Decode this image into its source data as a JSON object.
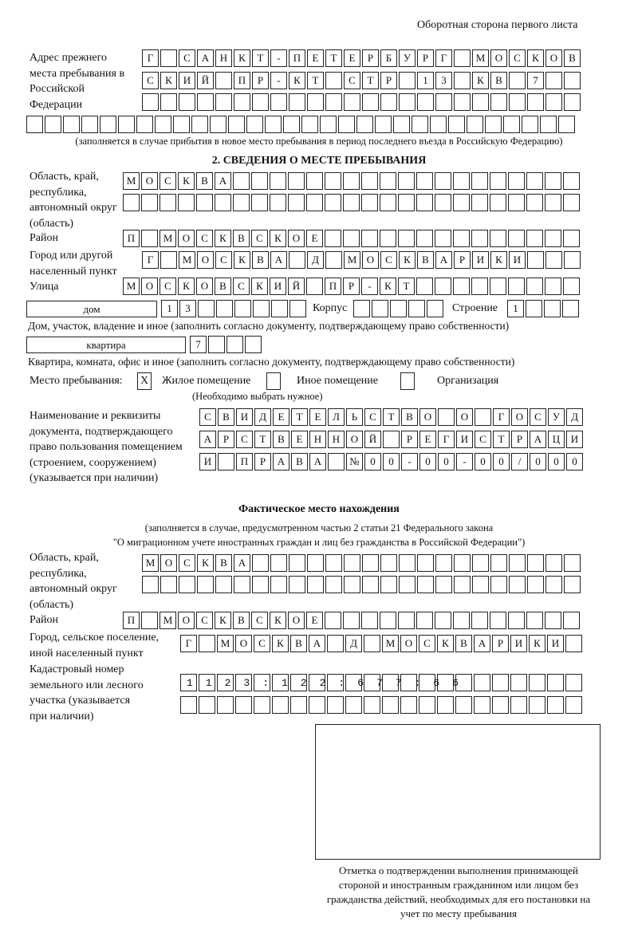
{
  "header": {
    "page_side": "Оборотная сторона первого листа"
  },
  "previous_address": {
    "label": "Адрес прежнего места пребывания в Российской Федерации",
    "rows": [
      "Г САНКТ-ПЕТЕРБУРГ МОСКОВ",
      "СКИЙ ПР-КТ СТР 13 КВ 7",
      "",
      ""
    ],
    "note": "(заполняется в случае прибытия в новое место пребывания в период последнего въезда в Российскую Федерацию)"
  },
  "section2": {
    "title": "2. СВЕДЕНИЯ О МЕСТЕ ПРЕБЫВАНИЯ",
    "region_label": "Область, край, республика, автономный округ (область)",
    "region_rows": [
      "МОСКВА",
      ""
    ],
    "district_label": "Район",
    "district": "П МОСКВСКОЕ",
    "city_label": "Город или другой населенный пункт",
    "city": "Г МОСКВА Д МОСКВАРИКИ",
    "street_label": "Улица",
    "street": "МОСКОВСКИЙ ПР-КТ",
    "house_type": "дом",
    "house_number": "13",
    "korpus_label": "Корпус",
    "korpus": "",
    "building_label": "Строение",
    "building": "1",
    "house_note": "Дом, участок, владение и иное (заполнить согласно документу, подтверждающему право собственности)",
    "apartment_type": "квартира",
    "apartment_number": "7",
    "apartment_note": "Квартира, комната, офис и иное (заполнить согласно документу, подтверждающему право собственности)",
    "stay_place_label": "Место пребывания:",
    "options": [
      {
        "label": "Жилое помещение",
        "mark": "X"
      },
      {
        "label": "Иное помещение",
        "mark": ""
      },
      {
        "label": "Организация",
        "mark": ""
      }
    ],
    "choose_note": "(Необходимо выбрать нужное)",
    "document_label": "Наименование и реквизиты документа, подтверждающего право пользования помещением (строением, сооружением) (указывается при наличии)",
    "document_rows": [
      "СВИДЕТЕЛЬСТВО О ГОСУД",
      "АРСТВЕННОЙ РЕГИСТРАЦИ",
      "И ПРАВА №00-00-00/000"
    ]
  },
  "actual": {
    "title": "Фактическое место нахождения",
    "note_line1": "(заполняется в случае, предусмотренном частью 2 статьи 21 Федерального закона",
    "note_line2": "\"О миграционном учете иностранных граждан и лиц без гражданства в Российской Федерации\")",
    "region_label": "Область, край, республика, автономный округ (область)",
    "region_rows": [
      "МОСКВА",
      ""
    ],
    "district_label": "Район",
    "district": "П МОСКВСКОЕ",
    "city_label": "Город, сельское поселение, иной населенный пункт",
    "city": "Г МОСКВА Д МОСКВАРИКИ",
    "cadastral_label": "Кадастровый номер земельного или лесного участка (указывается при наличии)",
    "cadastral_rows": [
      "1123:122:677:66",
      ""
    ]
  },
  "stamp": {
    "caption": "Отметка о подтверждении выполнения принимающей стороной и иностранным гражданином или лицом без гражданства действий, необходимых для его постановки на учет по месту пребывания"
  }
}
